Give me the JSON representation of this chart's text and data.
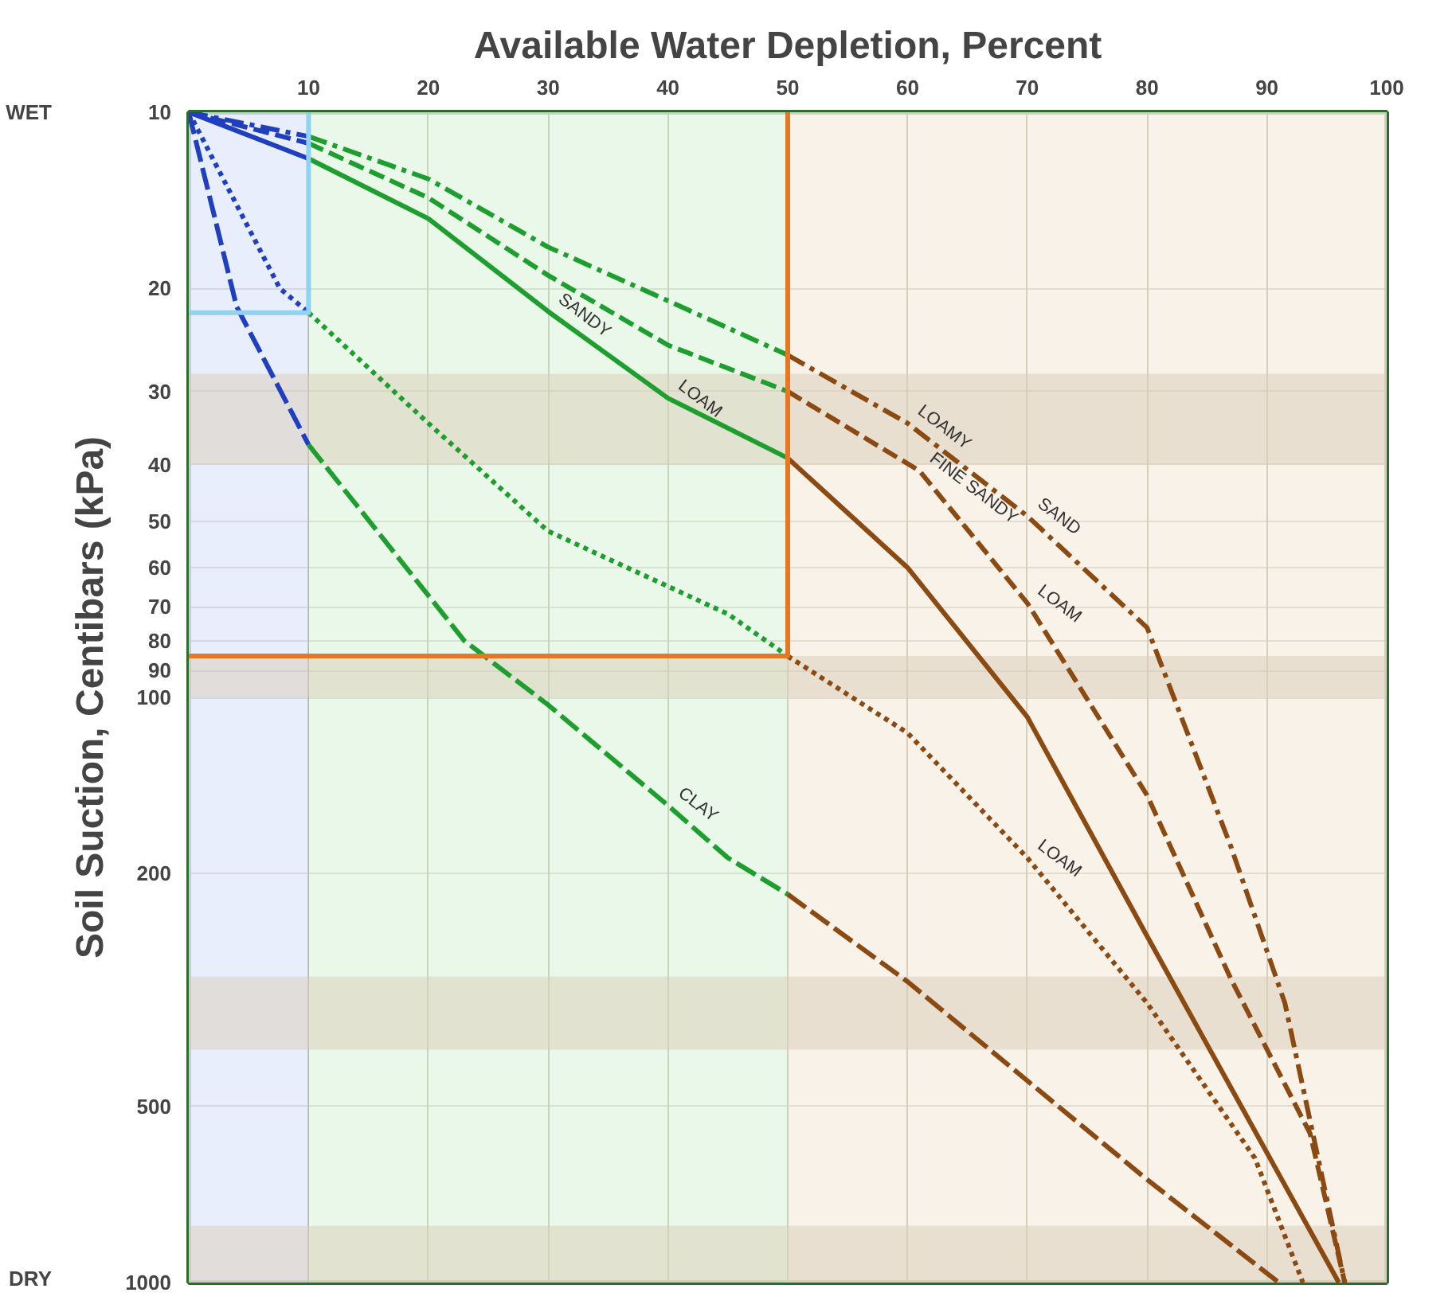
{
  "chart_data": {
    "type": "line",
    "xlabel": "Available Water Depletion, Percent",
    "ylabel": "Soil Suction, Centibars (kPa)",
    "log": "y",
    "grid": true,
    "xlim": [
      0,
      100
    ],
    "xticks": [
      10,
      20,
      30,
      40,
      50,
      60,
      70,
      80,
      90,
      100
    ],
    "ylim": [
      1000,
      10
    ],
    "yticks": [
      10,
      20,
      30,
      40,
      50,
      60,
      70,
      80,
      90,
      100,
      200,
      500,
      1000
    ],
    "bands": [
      {
        "axis": "x",
        "from": 0,
        "to": 10,
        "color": "#e3eafb"
      },
      {
        "axis": "x",
        "from": 10,
        "to": 50,
        "color": "#e4f6e2"
      },
      {
        "axis": "x",
        "from": 50,
        "to": 100,
        "color": "#f7efe4"
      },
      {
        "axis": "y",
        "from": 28,
        "to": 40,
        "color": "#d9cbb8"
      },
      {
        "axis": "y",
        "from": 85,
        "to": 100,
        "color": "#d9cbb8"
      },
      {
        "axis": "y",
        "from": 300,
        "to": 400,
        "color": "#d9cbb8"
      },
      {
        "axis": "y",
        "from": 800,
        "to": 1000,
        "color": "#d9cbb8"
      }
    ],
    "series": [
      {
        "color": "#1f3fbf",
        "line_style": "solid",
        "x": [
          0,
          10
        ],
        "values": [
          10,
          12
        ]
      },
      {
        "color": "#1e9e2e",
        "line_style": "solid",
        "x": [
          10,
          20,
          30,
          40,
          50
        ],
        "values": [
          12,
          15.2,
          21.9,
          30.8,
          39
        ]
      },
      {
        "color": "#8b4a12",
        "line_style": "solid",
        "x": [
          50,
          60,
          70,
          80,
          96
        ],
        "values": [
          39,
          60,
          108,
          256,
          1000
        ]
      },
      {
        "color": "#1f3fbf",
        "line_style": "dashdot",
        "x": [
          0,
          10
        ],
        "values": [
          10,
          11
        ]
      },
      {
        "color": "#1e9e2e",
        "line_style": "dashdot",
        "x": [
          10,
          20,
          30,
          40,
          50
        ],
        "values": [
          11,
          13,
          17,
          21,
          26
        ]
      },
      {
        "color": "#8b4a12",
        "line_style": "dashdot",
        "x": [
          50,
          60,
          70,
          80,
          87,
          91.5,
          96.5
        ],
        "values": [
          26,
          34,
          49,
          76,
          180,
          333,
          1000
        ]
      },
      {
        "color": "#1f3fbf",
        "line_style": "dashed",
        "x": [
          0,
          10
        ],
        "values": [
          10,
          11.3
        ]
      },
      {
        "color": "#1e9e2e",
        "line_style": "dashed",
        "x": [
          10,
          20,
          30,
          40,
          50
        ],
        "values": [
          11.3,
          14,
          19,
          25,
          30
        ]
      },
      {
        "color": "#8b4a12",
        "line_style": "dashed",
        "x": [
          50,
          61,
          70,
          80,
          87,
          93.6,
          96.5
        ],
        "values": [
          30,
          41,
          69,
          147,
          303,
          556,
          1000
        ]
      },
      {
        "color": "#1f3fbf",
        "line_style": "dotted",
        "x": [
          0,
          7.6,
          10
        ],
        "values": [
          10,
          20,
          22
        ]
      },
      {
        "color": "#1e9e2e",
        "line_style": "dotted",
        "x": [
          10,
          20,
          30,
          45,
          50
        ],
        "values": [
          22,
          34,
          52,
          72,
          85
        ]
      },
      {
        "color": "#8b4a12",
        "line_style": "dotted",
        "x": [
          50,
          60,
          70,
          80,
          89,
          93
        ],
        "values": [
          85,
          115,
          188,
          333,
          613,
          1000
        ]
      },
      {
        "color": "#1f3fbf",
        "line_style": "longdash",
        "x": [
          0,
          4,
          10
        ],
        "values": [
          10,
          21.5,
          37
        ]
      },
      {
        "color": "#1e9e2e",
        "line_style": "longdash",
        "x": [
          10,
          23,
          30,
          40,
          45,
          50
        ],
        "values": [
          37,
          80,
          103,
          153,
          188,
          217
        ]
      },
      {
        "color": "#8b4a12",
        "line_style": "longdash",
        "x": [
          50,
          60,
          70,
          80,
          91
        ],
        "values": [
          217,
          306,
          452,
          667,
          1000
        ]
      },
      {
        "color": "#8fd3f0",
        "line_style": "solid",
        "x": [
          10,
          10,
          0
        ],
        "values": [
          10,
          22,
          22
        ]
      },
      {
        "color": "#e87722",
        "line_style": "solid",
        "x": [
          50,
          50,
          0
        ],
        "values": [
          10,
          85,
          85
        ]
      }
    ],
    "annotations": [
      "WET",
      "DRY",
      {
        "text": "SANDY",
        "x": 30,
        "y": 21.9
      },
      {
        "text": "LOAM",
        "x": 40,
        "y": 30.8
      },
      {
        "text": "LOAMY",
        "x": 60,
        "y": 34
      },
      {
        "text": "SAND",
        "x": 70,
        "y": 49
      },
      {
        "text": "FINE SANDY",
        "x": 61,
        "y": 41
      },
      {
        "text": "LOAM",
        "x": 70,
        "y": 69
      },
      {
        "text": "CLAY",
        "x": 40,
        "y": 153
      },
      {
        "text": "LOAM",
        "x": 70,
        "y": 188
      }
    ]
  }
}
